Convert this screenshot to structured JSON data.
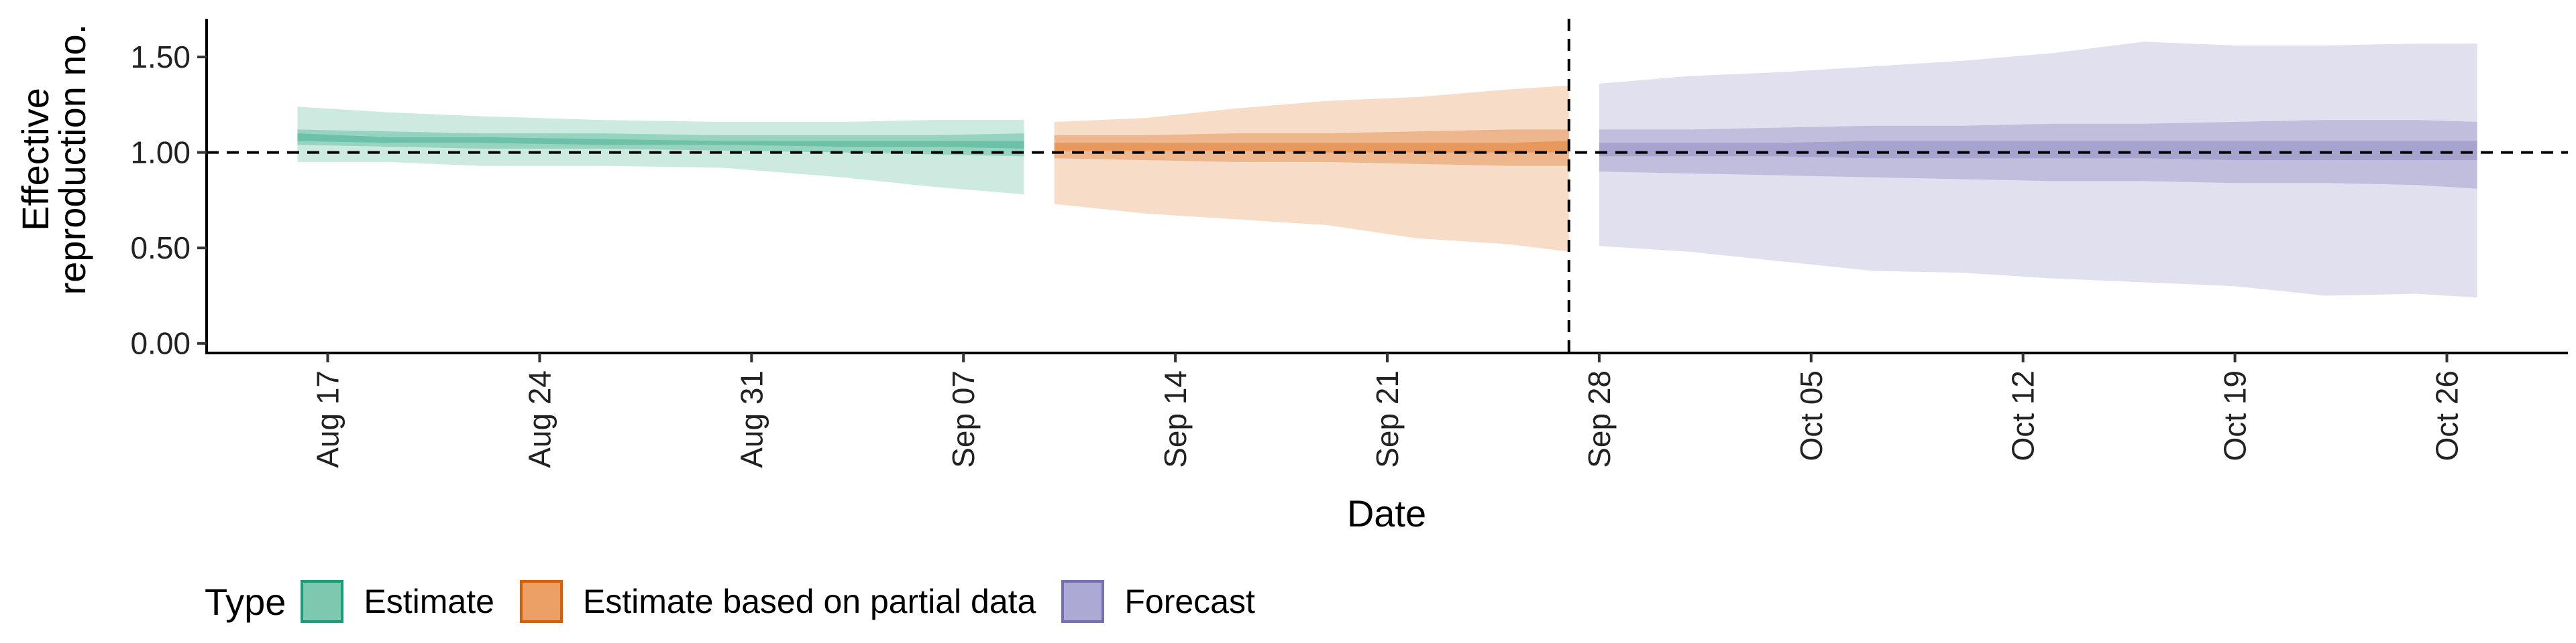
{
  "chart_data": {
    "type": "area",
    "xlabel": "Date",
    "ylabel_lines": [
      "Effective",
      "reproduction no."
    ],
    "ylim": [
      -0.05,
      1.7
    ],
    "xlim": [
      "2020-08-13",
      "2020-10-30"
    ],
    "y_ticks": [
      {
        "value": 0.0,
        "label": "0.00"
      },
      {
        "value": 0.5,
        "label": "0.50"
      },
      {
        "value": 1.0,
        "label": "1.00"
      },
      {
        "value": 1.5,
        "label": "1.50"
      }
    ],
    "x_ticks": [
      {
        "date": "2020-08-17",
        "label": "Aug 17"
      },
      {
        "date": "2020-08-24",
        "label": "Aug 24"
      },
      {
        "date": "2020-08-31",
        "label": "Aug 31"
      },
      {
        "date": "2020-09-07",
        "label": "Sep 07"
      },
      {
        "date": "2020-09-14",
        "label": "Sep 14"
      },
      {
        "date": "2020-09-21",
        "label": "Sep 21"
      },
      {
        "date": "2020-09-28",
        "label": "Sep 28"
      },
      {
        "date": "2020-10-05",
        "label": "Oct 05"
      },
      {
        "date": "2020-10-12",
        "label": "Oct 12"
      },
      {
        "date": "2020-10-19",
        "label": "Oct 19"
      },
      {
        "date": "2020-10-26",
        "label": "Oct 26"
      }
    ],
    "reference_hline": 1.0,
    "reference_vline": "2020-09-27",
    "legend": {
      "title": "Type",
      "placement": "bottom-left"
    },
    "series": [
      {
        "name": "Estimate",
        "color": "#1B9E77",
        "points": [
          {
            "date": "2020-08-16",
            "lower90": 0.95,
            "lower50": 1.04,
            "lower20": 1.06,
            "upper20": 1.1,
            "upper50": 1.12,
            "upper90": 1.24
          },
          {
            "date": "2020-08-19",
            "lower90": 0.95,
            "lower50": 1.03,
            "lower20": 1.05,
            "upper20": 1.08,
            "upper50": 1.11,
            "upper90": 1.21
          },
          {
            "date": "2020-08-22",
            "lower90": 0.93,
            "lower50": 1.02,
            "lower20": 1.05,
            "upper20": 1.08,
            "upper50": 1.1,
            "upper90": 1.19
          },
          {
            "date": "2020-08-26",
            "lower90": 0.93,
            "lower50": 1.02,
            "lower20": 1.04,
            "upper20": 1.07,
            "upper50": 1.1,
            "upper90": 1.17
          },
          {
            "date": "2020-08-30",
            "lower90": 0.92,
            "lower50": 1.01,
            "lower20": 1.04,
            "upper20": 1.06,
            "upper50": 1.09,
            "upper90": 1.16
          },
          {
            "date": "2020-09-03",
            "lower90": 0.87,
            "lower50": 1.0,
            "lower20": 1.03,
            "upper20": 1.06,
            "upper50": 1.09,
            "upper90": 1.16
          },
          {
            "date": "2020-09-06",
            "lower90": 0.82,
            "lower50": 0.99,
            "lower20": 1.03,
            "upper20": 1.06,
            "upper50": 1.09,
            "upper90": 1.17
          },
          {
            "date": "2020-09-09",
            "lower90": 0.78,
            "lower50": 0.98,
            "lower20": 1.02,
            "upper20": 1.06,
            "upper50": 1.1,
            "upper90": 1.17
          }
        ]
      },
      {
        "name": "Estimate based on partial data",
        "color": "#D95F02",
        "points": [
          {
            "date": "2020-09-10",
            "lower90": 0.73,
            "lower50": 0.97,
            "lower20": 1.01,
            "upper20": 1.05,
            "upper50": 1.09,
            "upper90": 1.16
          },
          {
            "date": "2020-09-13",
            "lower90": 0.68,
            "lower50": 0.96,
            "lower20": 1.01,
            "upper20": 1.05,
            "upper50": 1.09,
            "upper90": 1.18
          },
          {
            "date": "2020-09-16",
            "lower90": 0.65,
            "lower50": 0.95,
            "lower20": 1.01,
            "upper20": 1.05,
            "upper50": 1.1,
            "upper90": 1.23
          },
          {
            "date": "2020-09-19",
            "lower90": 0.62,
            "lower50": 0.95,
            "lower20": 1.0,
            "upper20": 1.05,
            "upper50": 1.1,
            "upper90": 1.27
          },
          {
            "date": "2020-09-22",
            "lower90": 0.55,
            "lower50": 0.94,
            "lower20": 1.0,
            "upper20": 1.05,
            "upper50": 1.11,
            "upper90": 1.29
          },
          {
            "date": "2020-09-25",
            "lower90": 0.52,
            "lower50": 0.93,
            "lower20": 1.0,
            "upper20": 1.05,
            "upper50": 1.12,
            "upper90": 1.33
          },
          {
            "date": "2020-09-27",
            "lower90": 0.48,
            "lower50": 0.93,
            "lower20": 1.0,
            "upper20": 1.06,
            "upper50": 1.12,
            "upper90": 1.35
          }
        ]
      },
      {
        "name": "Forecast",
        "color": "#7570B3",
        "points": [
          {
            "date": "2020-09-28",
            "lower90": 0.51,
            "lower50": 0.9,
            "lower20": 0.98,
            "upper20": 1.05,
            "upper50": 1.12,
            "upper90": 1.36
          },
          {
            "date": "2020-10-01",
            "lower90": 0.48,
            "lower50": 0.89,
            "lower20": 0.98,
            "upper20": 1.05,
            "upper50": 1.12,
            "upper90": 1.4
          },
          {
            "date": "2020-10-04",
            "lower90": 0.43,
            "lower50": 0.88,
            "lower20": 0.98,
            "upper20": 1.05,
            "upper50": 1.13,
            "upper90": 1.42
          },
          {
            "date": "2020-10-07",
            "lower90": 0.38,
            "lower50": 0.87,
            "lower20": 0.97,
            "upper20": 1.06,
            "upper50": 1.14,
            "upper90": 1.45
          },
          {
            "date": "2020-10-10",
            "lower90": 0.37,
            "lower50": 0.86,
            "lower20": 0.97,
            "upper20": 1.06,
            "upper50": 1.14,
            "upper90": 1.48
          },
          {
            "date": "2020-10-13",
            "lower90": 0.34,
            "lower50": 0.85,
            "lower20": 0.97,
            "upper20": 1.06,
            "upper50": 1.15,
            "upper90": 1.52
          },
          {
            "date": "2020-10-16",
            "lower90": 0.32,
            "lower50": 0.85,
            "lower20": 0.97,
            "upper20": 1.06,
            "upper50": 1.15,
            "upper90": 1.58
          },
          {
            "date": "2020-10-19",
            "lower90": 0.3,
            "lower50": 0.84,
            "lower20": 0.96,
            "upper20": 1.06,
            "upper50": 1.16,
            "upper90": 1.56
          },
          {
            "date": "2020-10-22",
            "lower90": 0.25,
            "lower50": 0.84,
            "lower20": 0.96,
            "upper20": 1.06,
            "upper50": 1.17,
            "upper90": 1.56
          },
          {
            "date": "2020-10-25",
            "lower90": 0.26,
            "lower50": 0.83,
            "lower20": 0.96,
            "upper20": 1.06,
            "upper50": 1.17,
            "upper90": 1.57
          },
          {
            "date": "2020-10-27",
            "lower90": 0.24,
            "lower50": 0.81,
            "lower20": 0.96,
            "upper20": 1.06,
            "upper50": 1.16,
            "upper90": 1.57
          }
        ]
      }
    ]
  },
  "legend_swatches": {
    "Estimate": {
      "fill": "#7DC8AF",
      "border": "#1B9E77"
    },
    "Estimate based on partial data": {
      "fill": "#ECA066",
      "border": "#D95F02"
    },
    "Forecast": {
      "fill": "#ACA9D4",
      "border": "#7570B3"
    }
  }
}
